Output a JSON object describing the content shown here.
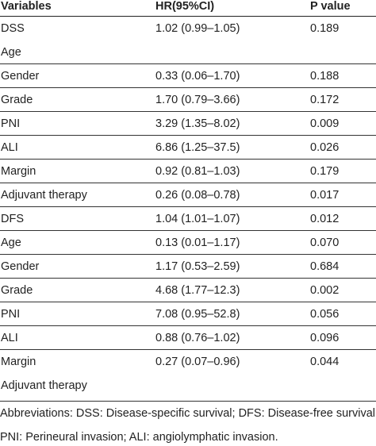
{
  "table": {
    "headers": [
      "Variables",
      "HR(95%CI)",
      "P value"
    ],
    "rows": [
      [
        "DSS",
        "1.02 (0.99–1.05)",
        "0.189"
      ],
      [
        "Age",
        "",
        ""
      ],
      [
        "Gender",
        "0.33 (0.06–1.70)",
        "0.188"
      ],
      [
        "Grade",
        "1.70 (0.79–3.66)",
        "0.172"
      ],
      [
        "PNI",
        "3.29 (1.35–8.02)",
        "0.009"
      ],
      [
        "ALI",
        "6.86 (1.25–37.5)",
        "0.026"
      ],
      [
        "Margin",
        "0.92 (0.81–1.03)",
        "0.179"
      ],
      [
        "Adjuvant therapy",
        "0.26 (0.08–0.78)",
        "0.017"
      ],
      [
        "DFS",
        "1.04 (1.01–1.07)",
        "0.012"
      ],
      [
        "Age",
        "0.13 (0.01–1.17)",
        "0.070"
      ],
      [
        "Gender",
        "1.17 (0.53–2.59)",
        "0.684"
      ],
      [
        "Grade",
        "4.68 (1.77–12.3)",
        "0.002"
      ],
      [
        "PNI",
        "7.08 (0.95–52.8)",
        "0.056"
      ],
      [
        "ALI",
        "0.88 (0.76–1.02)",
        "0.096"
      ],
      [
        "Margin",
        "0.27 (0.07–0.96)",
        "0.044"
      ],
      [
        "Adjuvant therapy",
        "",
        ""
      ]
    ]
  },
  "footnote": {
    "line1": "Abbreviations: DSS: Disease-specific survival; DFS: Disease-free survival;",
    "line2": "PNI: Perineural invasion; ALI: angiolymphatic invasion."
  }
}
